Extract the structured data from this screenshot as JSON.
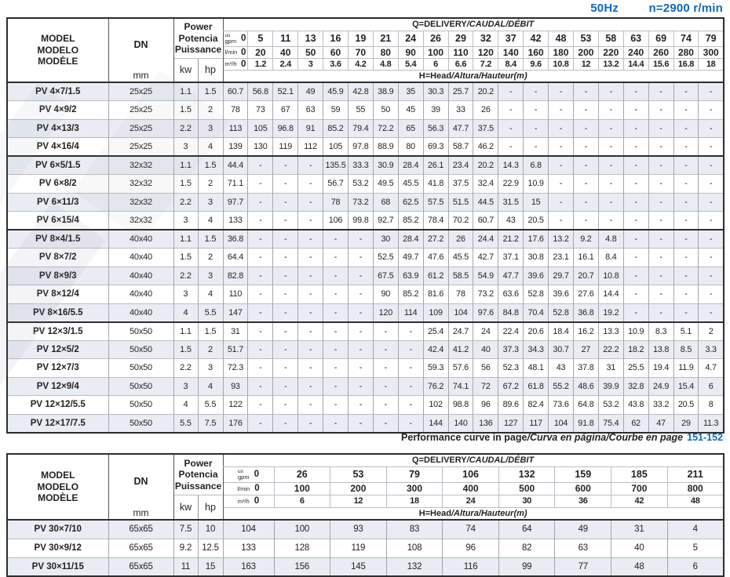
{
  "meta": {
    "frequency": "50Hz",
    "speed": "n=2900 r/min"
  },
  "common": {
    "model_lines": [
      "MODEL",
      "MODELO",
      "MODÈLE"
    ],
    "dn_label": "DN",
    "dn_unit": "mm",
    "power_lines": [
      "Power",
      "Potencia",
      "Puissance"
    ],
    "kw_label": "kw",
    "hp_label": "hp",
    "q_title_main": "Q=DELIVERY",
    "q_title_intl": "/CAUDAL/DÉBIT",
    "h_title_main": "H=Head",
    "h_title_intl": "/Altura/Hauteur",
    "h_title_unit": "(m)",
    "unit_us": "us",
    "unit_gpm": "gpm",
    "unit_lmin": "l/min",
    "unit_m3h": "m³/h"
  },
  "table1": {
    "gpm": [
      "0",
      "5",
      "11",
      "13",
      "16",
      "19",
      "21",
      "24",
      "26",
      "29",
      "32",
      "37",
      "42",
      "48",
      "53",
      "58",
      "63",
      "69",
      "74",
      "79"
    ],
    "lmin": [
      "0",
      "20",
      "40",
      "50",
      "60",
      "70",
      "80",
      "90",
      "100",
      "110",
      "120",
      "140",
      "160",
      "180",
      "200",
      "220",
      "240",
      "260",
      "280",
      "300"
    ],
    "m3h": [
      "0",
      "1.2",
      "2.4",
      "3",
      "3.6",
      "4.2",
      "4.8",
      "5.4",
      "6",
      "6.6",
      "7.2",
      "8.4",
      "9.6",
      "10.8",
      "12",
      "13.2",
      "14.4",
      "15.6",
      "16.8",
      "18"
    ],
    "rows": [
      {
        "model": "PV 4×7/1.5",
        "dn": "25x25",
        "kw": "1.1",
        "hp": "1.5",
        "group_start": false,
        "h": [
          "60.7",
          "56.8",
          "52.1",
          "49",
          "45.9",
          "42.8",
          "38.9",
          "35",
          "30.3",
          "25.7",
          "20.2",
          "-",
          "-",
          "-",
          "-",
          "-",
          "-",
          "-",
          "-",
          "-"
        ]
      },
      {
        "model": "PV 4×9/2",
        "dn": "25x25",
        "kw": "1.5",
        "hp": "2",
        "group_start": false,
        "h": [
          "78",
          "73",
          "67",
          "63",
          "59",
          "55",
          "50",
          "45",
          "39",
          "33",
          "26",
          "-",
          "-",
          "-",
          "-",
          "-",
          "-",
          "-",
          "-",
          "-"
        ]
      },
      {
        "model": "PV 4×13/3",
        "dn": "25x25",
        "kw": "2.2",
        "hp": "3",
        "group_start": false,
        "h": [
          "113",
          "105",
          "96.8",
          "91",
          "85.2",
          "79.4",
          "72.2",
          "65",
          "56.3",
          "47.7",
          "37.5",
          "-",
          "-",
          "-",
          "-",
          "-",
          "-",
          "-",
          "-",
          "-"
        ]
      },
      {
        "model": "PV 4×16/4",
        "dn": "25x25",
        "kw": "3",
        "hp": "4",
        "group_start": false,
        "h": [
          "139",
          "130",
          "119",
          "112",
          "105",
          "97.8",
          "88.9",
          "80",
          "69.3",
          "58.7",
          "46.2",
          "-",
          "-",
          "-",
          "-",
          "-",
          "-",
          "-",
          "-",
          "-"
        ]
      },
      {
        "model": "PV 6×5/1.5",
        "dn": "32x32",
        "kw": "1.1",
        "hp": "1.5",
        "group_start": true,
        "h": [
          "44.4",
          "-",
          "-",
          "-",
          "135.5",
          "33.3",
          "30.9",
          "28.4",
          "26.1",
          "23.4",
          "20.2",
          "14.3",
          "6.8",
          "-",
          "-",
          "-",
          "-",
          "-",
          "-",
          "-"
        ]
      },
      {
        "model": "PV 6×8/2",
        "dn": "32x32",
        "kw": "1.5",
        "hp": "2",
        "group_start": false,
        "h": [
          "71.1",
          "-",
          "-",
          "-",
          "56.7",
          "53.2",
          "49.5",
          "45.5",
          "41.8",
          "37.5",
          "32.4",
          "22.9",
          "10.9",
          "-",
          "-",
          "-",
          "-",
          "-",
          "-",
          "-"
        ]
      },
      {
        "model": "PV 6×11/3",
        "dn": "32x32",
        "kw": "2.2",
        "hp": "3",
        "group_start": false,
        "h": [
          "97.7",
          "-",
          "-",
          "-",
          "78",
          "73.2",
          "68",
          "62.5",
          "57.5",
          "51.5",
          "44.5",
          "31.5",
          "15",
          "-",
          "-",
          "-",
          "-",
          "-",
          "-",
          "-"
        ]
      },
      {
        "model": "PV 6×15/4",
        "dn": "32x32",
        "kw": "3",
        "hp": "4",
        "group_start": false,
        "h": [
          "133",
          "-",
          "-",
          "-",
          "106",
          "99.8",
          "92.7",
          "85.2",
          "78.4",
          "70.2",
          "60.7",
          "43",
          "20.5",
          "-",
          "-",
          "-",
          "-",
          "-",
          "-",
          "-"
        ]
      },
      {
        "model": "PV 8×4/1.5",
        "dn": "40x40",
        "kw": "1.1",
        "hp": "1.5",
        "group_start": true,
        "h": [
          "36.8",
          "-",
          "-",
          "-",
          "-",
          "-",
          "30",
          "28.4",
          "27.2",
          "26",
          "24.4",
          "21.2",
          "17.6",
          "13.2",
          "9.2",
          "4.8",
          "-",
          "-",
          "-",
          "-"
        ]
      },
      {
        "model": "PV 8×7/2",
        "dn": "40x40",
        "kw": "1.5",
        "hp": "2",
        "group_start": false,
        "h": [
          "64.4",
          "-",
          "-",
          "-",
          "-",
          "-",
          "52.5",
          "49.7",
          "47.6",
          "45.5",
          "42.7",
          "37.1",
          "30.8",
          "23.1",
          "16.1",
          "8.4",
          "-",
          "-",
          "-",
          "-"
        ]
      },
      {
        "model": "PV 8×9/3",
        "dn": "40x40",
        "kw": "2.2",
        "hp": "3",
        "group_start": false,
        "h": [
          "82.8",
          "-",
          "-",
          "-",
          "-",
          "-",
          "67.5",
          "63.9",
          "61.2",
          "58.5",
          "54.9",
          "47.7",
          "39.6",
          "29.7",
          "20.7",
          "10.8",
          "-",
          "-",
          "-",
          "-"
        ]
      },
      {
        "model": "PV 8×12/4",
        "dn": "40x40",
        "kw": "3",
        "hp": "4",
        "group_start": false,
        "h": [
          "110",
          "-",
          "-",
          "-",
          "-",
          "-",
          "90",
          "85.2",
          "81.6",
          "78",
          "73.2",
          "63.6",
          "52.8",
          "39.6",
          "27.6",
          "14.4",
          "-",
          "-",
          "-",
          "-"
        ]
      },
      {
        "model": "PV 8×16/5.5",
        "dn": "40x40",
        "kw": "4",
        "hp": "5.5",
        "group_start": false,
        "h": [
          "147",
          "-",
          "-",
          "-",
          "-",
          "-",
          "120",
          "114",
          "109",
          "104",
          "97.6",
          "84.8",
          "70.4",
          "52.8",
          "36.8",
          "19.2",
          "-",
          "-",
          "-",
          "-"
        ]
      },
      {
        "model": "PV 12×3/1.5",
        "dn": "50x50",
        "kw": "1.1",
        "hp": "1.5",
        "group_start": true,
        "h": [
          "31",
          "-",
          "-",
          "-",
          "-",
          "-",
          "-",
          "-",
          "25.4",
          "24.7",
          "24",
          "22.4",
          "20.6",
          "18.4",
          "16.2",
          "13.3",
          "10.9",
          "8.3",
          "5.1",
          "2"
        ]
      },
      {
        "model": "PV 12×5/2",
        "dn": "50x50",
        "kw": "1.5",
        "hp": "2",
        "group_start": false,
        "h": [
          "51.7",
          "-",
          "-",
          "-",
          "-",
          "-",
          "-",
          "-",
          "42.4",
          "41.2",
          "40",
          "37.3",
          "34.3",
          "30.7",
          "27",
          "22.2",
          "18.2",
          "13.8",
          "8.5",
          "3.3"
        ]
      },
      {
        "model": "PV 12×7/3",
        "dn": "50x50",
        "kw": "2.2",
        "hp": "3",
        "group_start": false,
        "h": [
          "72.3",
          "-",
          "-",
          "-",
          "-",
          "-",
          "-",
          "-",
          "59.3",
          "57.6",
          "56",
          "52.3",
          "48.1",
          "43",
          "37.8",
          "31",
          "25.5",
          "19.4",
          "11.9",
          "4.7"
        ]
      },
      {
        "model": "PV 12×9/4",
        "dn": "50x50",
        "kw": "3",
        "hp": "4",
        "group_start": false,
        "h": [
          "93",
          "-",
          "-",
          "-",
          "-",
          "-",
          "-",
          "-",
          "76.2",
          "74.1",
          "72",
          "67.2",
          "61.8",
          "55.2",
          "48.6",
          "39.9",
          "32.8",
          "24.9",
          "15.4",
          "6"
        ]
      },
      {
        "model": "PV 12×12/5.5",
        "dn": "50x50",
        "kw": "4",
        "hp": "5.5",
        "group_start": false,
        "h": [
          "122",
          "-",
          "-",
          "-",
          "-",
          "-",
          "-",
          "-",
          "102",
          "98.8",
          "96",
          "89.6",
          "82.4",
          "73.6",
          "64.8",
          "53.2",
          "43.8",
          "33.2",
          "20.5",
          "8"
        ]
      },
      {
        "model": "PV 12×17/7.5",
        "dn": "50x50",
        "kw": "5.5",
        "hp": "7.5",
        "group_start": false,
        "h": [
          "176",
          "-",
          "-",
          "-",
          "-",
          "-",
          "-",
          "-",
          "144",
          "140",
          "136",
          "127",
          "117",
          "104",
          "91.8",
          "75.4",
          "62",
          "47",
          "29",
          "11.3"
        ]
      }
    ]
  },
  "footer": {
    "main": "Performance curve in page",
    "intl": "/Curva en página/Courbe en page",
    "pages": "151-152"
  },
  "table2": {
    "gpm": [
      "0",
      "26",
      "53",
      "79",
      "106",
      "132",
      "159",
      "185",
      "211"
    ],
    "lmin": [
      "0",
      "100",
      "200",
      "300",
      "400",
      "500",
      "600",
      "700",
      "800"
    ],
    "m3h": [
      "0",
      "6",
      "12",
      "18",
      "24",
      "30",
      "36",
      "42",
      "48"
    ],
    "rows": [
      {
        "model": "PV 30×7/10",
        "dn": "65x65",
        "kw": "7.5",
        "hp": "10",
        "group_start": false,
        "h": [
          "104",
          "100",
          "93",
          "83",
          "74",
          "64",
          "49",
          "31",
          "4"
        ]
      },
      {
        "model": "PV 30×9/12",
        "dn": "65x65",
        "kw": "9.2",
        "hp": "12.5",
        "group_start": false,
        "h": [
          "133",
          "128",
          "119",
          "108",
          "96",
          "82",
          "63",
          "40",
          "5"
        ]
      },
      {
        "model": "PV 30×11/15",
        "dn": "65x65",
        "kw": "11",
        "hp": "15",
        "group_start": false,
        "h": [
          "163",
          "156",
          "145",
          "132",
          "116",
          "99",
          "77",
          "48",
          "6"
        ]
      }
    ]
  }
}
